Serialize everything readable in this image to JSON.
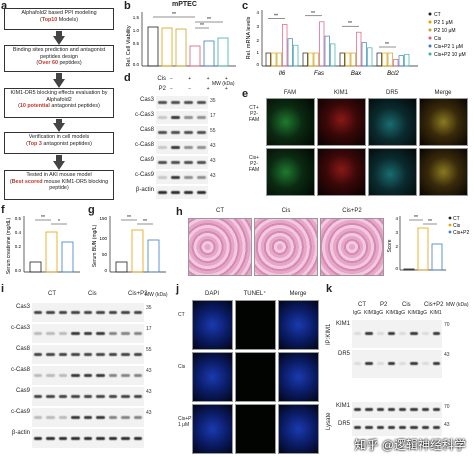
{
  "panels": {
    "a": {
      "label": "a",
      "steps": [
        {
          "pre": "Alphafold2 based PPI modeling",
          "hl": "Top10",
          "post": "Models"
        },
        {
          "pre": "Binding sites prediction and antagonist peptides design",
          "hl": "Over 60",
          "post": "peptides"
        },
        {
          "pre": "KIM1-DR5 blocking effects evaluation by Alphafold2",
          "hl": "10 potential",
          "post": "antagonist peptides"
        },
        {
          "pre": "Verification in cell models",
          "hl": "Top 3",
          "post": "antagonist peptides"
        },
        {
          "pre": "Tested in AKI mouse model",
          "hl": "Best scored",
          "post": "mouse KIM1-DR5 blocking peptide"
        }
      ]
    },
    "b": {
      "label": "b",
      "title": "mPTEC",
      "ylabel": "Rel. Cell Viability",
      "sig": [
        "**",
        "**",
        "**"
      ]
    },
    "c": {
      "label": "c",
      "ylabel": "Rel. mRNA levels",
      "legend": [
        "CT",
        "P2 1 μM",
        "P2 10 μM",
        "Cis",
        "Cis+P2 1 μM",
        "Cis+P2 10 μM"
      ]
    },
    "d": {
      "label": "d",
      "row_cis": "Cis",
      "row_p2": "P2",
      "conc1": "1 μM",
      "conc2": "10 μM",
      "mw_unit": "MW (kDa)",
      "proteins": [
        "Cas3",
        "c-Cas3",
        "Cas8",
        "c-Cas8",
        "Cas9",
        "c-Cas9",
        "β-actin"
      ],
      "mw": [
        "35",
        "17",
        "55",
        "43",
        "43",
        "43"
      ]
    },
    "e": {
      "label": "e",
      "cols": [
        "FAM",
        "KIM1",
        "DR5",
        "Merge"
      ],
      "rows": [
        "CT+ P2-FAM",
        "Cis+ P2-FAM"
      ]
    },
    "f": {
      "label": "f",
      "ylabel": "Serum creatinine (mg/dL)",
      "sig": [
        "**",
        "*"
      ]
    },
    "g": {
      "label": "g",
      "ylabel": "Serum BUN (mg/L)",
      "sig": [
        "**",
        "**"
      ]
    },
    "h": {
      "label": "h",
      "cols": [
        "CT",
        "Cis",
        "Cis+P2"
      ],
      "score_label": "Score",
      "legend": [
        "CT",
        "Cis",
        "Cis+P2"
      ],
      "sig": [
        "**",
        "**"
      ]
    },
    "i": {
      "label": "i",
      "groups": [
        "CT",
        "Cis",
        "Cis+P2"
      ],
      "mw_unit": "MW (kDa)",
      "proteins": [
        "Cas3",
        "c-Cas3",
        "Cas8",
        "c-Cas8",
        "Cas9",
        "c-Cas9",
        "β-actin"
      ],
      "mw": [
        "35",
        "17",
        "55",
        "43",
        "43",
        "43"
      ]
    },
    "j": {
      "label": "j",
      "cols": [
        "DAPI",
        "TUNEL⁺",
        "Merge"
      ],
      "rows": [
        "CT",
        "Cis",
        "Cis+P2 1 μM"
      ]
    },
    "k": {
      "label": "k",
      "groups": [
        "CT",
        "P2",
        "Cis",
        "Cis+P2"
      ],
      "lane_labels": [
        "IgG",
        "KIM1",
        "IgG",
        "KIM1",
        "IgG",
        "KIM1",
        "IgG",
        "KIM1"
      ],
      "ip_label": "IP:KIM1",
      "lysate_label": "Lysate",
      "mw_unit": "MW (kDa)",
      "ip_proteins": [
        "KIM1",
        "DR5"
      ],
      "lysate_proteins": [
        "KIM1",
        "DR5"
      ],
      "mw": [
        "70",
        "43",
        "70",
        "43"
      ]
    }
  },
  "watermark": "知乎 @逻辑神经科学",
  "colors": {
    "ct": "#222222",
    "p2_1": "#e8a100",
    "p2_10": "#c9a227",
    "cis": "#e05a7a",
    "cisp2_1": "#3a7ec9",
    "cisp2_10": "#3bb0a8"
  }
}
